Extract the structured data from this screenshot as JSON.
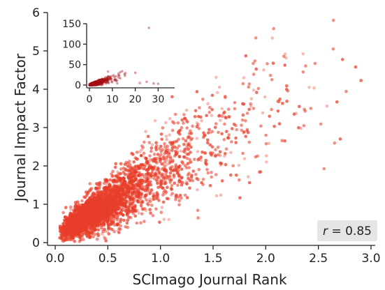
{
  "chart_data": [
    {
      "type": "scatter",
      "xlabel": "SCImago Journal Rank",
      "ylabel": "Journal Impact Factor",
      "xlim": [
        0.0,
        3.0
      ],
      "ylim": [
        0,
        6
      ],
      "xticks": [
        "0.0",
        "0.5",
        "1.0",
        "1.5",
        "2.0",
        "2.5",
        "3.0"
      ],
      "yticks": [
        "0",
        "1",
        "2",
        "3",
        "4",
        "5",
        "6"
      ],
      "grid": false,
      "point_color": "#e8402a",
      "point_opacity": 0.35,
      "annotation": {
        "var": "r",
        "text": " = 0.85",
        "position": "bottom-right",
        "box_color": "#e5e5e5"
      },
      "n_points_approx": 18000,
      "distribution_summary": {
        "x_mode": 0.3,
        "trend": "y ≈ 1.9·x + 0.1, dense cloud near origin, spreading upward toward (3, 6)",
        "correlation": 0.85
      }
    },
    {
      "type": "scatter",
      "role": "inset",
      "xlim": [
        -2,
        36
      ],
      "ylim": [
        -5,
        150
      ],
      "xticks": [
        "0",
        "10",
        "20",
        "30"
      ],
      "yticks": [
        "0",
        "50",
        "100",
        "150"
      ],
      "grid": false,
      "point_color": "#a50f15",
      "point_opacity": 0.4,
      "distribution_summary": {
        "trend": "points concentrated at x 0–15, y 0–30 with a few outliers up to x≈30",
        "outliers": [
          [
            22,
            5
          ],
          [
            25,
            8
          ],
          [
            28,
            4
          ],
          [
            30,
            3
          ],
          [
            26,
            140
          ],
          [
            20,
            30
          ]
        ]
      }
    }
  ]
}
